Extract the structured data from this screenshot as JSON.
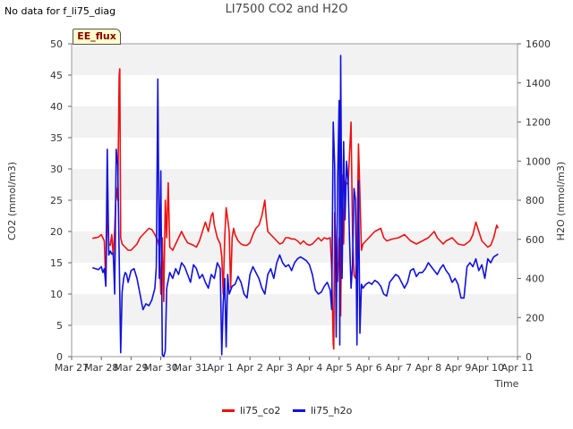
{
  "header": {
    "no_data_text": "No data for f_li75_diag",
    "title": "LI7500 CO2 and H2O",
    "badge": "EE_flux"
  },
  "legend": {
    "co2_label": "li75_co2",
    "h2o_label": "li75_h2o"
  },
  "colors": {
    "co2": "#ee1111",
    "h2o": "#1111dd",
    "band": "#f2f2f2"
  },
  "chart_data": {
    "type": "line",
    "title": "LI7500 CO2 and H2O",
    "xlabel": "Time",
    "ylabel_left": "CO2 (mmol/m3)",
    "ylabel_right": "H2O (mmol/m3)",
    "x_tick_labels": [
      "Mar 27",
      "Mar 28",
      "Mar 29",
      "Mar 30",
      "Mar 31",
      "Apr 1",
      "Apr 2",
      "Apr 3",
      "Apr 4",
      "Apr 5",
      "Apr 6",
      "Apr 7",
      "Apr 8",
      "Apr 9",
      "Apr 10",
      "Apr 11"
    ],
    "xlim_days": [
      0,
      15
    ],
    "ylim_left": [
      0,
      50
    ],
    "ylim_right": [
      0,
      1600
    ],
    "y_ticks_left": [
      0,
      5,
      10,
      15,
      20,
      25,
      30,
      35,
      40,
      45,
      50
    ],
    "y_ticks_right": [
      0,
      200,
      400,
      600,
      800,
      1000,
      1200,
      1400,
      1600
    ],
    "grid": "horizontal bands",
    "legend_position": "bottom-center",
    "series": [
      {
        "name": "li75_co2",
        "axis": "left",
        "points": [
          [
            0.7,
            18.9
          ],
          [
            0.9,
            19.1
          ],
          [
            1.0,
            19.5
          ],
          [
            1.1,
            18.5
          ],
          [
            1.15,
            11.5
          ],
          [
            1.2,
            25.0
          ],
          [
            1.25,
            18.0
          ],
          [
            1.3,
            17.8
          ],
          [
            1.35,
            19.5
          ],
          [
            1.4,
            16.0
          ],
          [
            1.45,
            20.5
          ],
          [
            1.5,
            27.0
          ],
          [
            1.55,
            25.0
          ],
          [
            1.6,
            45.0
          ],
          [
            1.62,
            46.0
          ],
          [
            1.65,
            19.0
          ],
          [
            1.7,
            18.0
          ],
          [
            1.8,
            17.5
          ],
          [
            1.9,
            17.0
          ],
          [
            2.0,
            17.0
          ],
          [
            2.1,
            17.5
          ],
          [
            2.2,
            18.0
          ],
          [
            2.3,
            19.0
          ],
          [
            2.4,
            19.5
          ],
          [
            2.5,
            20.0
          ],
          [
            2.6,
            20.5
          ],
          [
            2.7,
            20.3
          ],
          [
            2.8,
            19.5
          ],
          [
            2.9,
            18.5
          ],
          [
            2.95,
            17.5
          ],
          [
            3.0,
            10.0
          ],
          [
            3.05,
            19.0
          ],
          [
            3.1,
            8.8
          ],
          [
            3.15,
            25.0
          ],
          [
            3.2,
            19.0
          ],
          [
            3.25,
            27.8
          ],
          [
            3.3,
            17.5
          ],
          [
            3.4,
            17.0
          ],
          [
            3.5,
            18.0
          ],
          [
            3.6,
            19.0
          ],
          [
            3.7,
            20.0
          ],
          [
            3.8,
            19.0
          ],
          [
            3.9,
            18.2
          ],
          [
            4.0,
            18.0
          ],
          [
            4.1,
            17.8
          ],
          [
            4.2,
            17.5
          ],
          [
            4.3,
            18.5
          ],
          [
            4.4,
            20.0
          ],
          [
            4.5,
            21.5
          ],
          [
            4.6,
            20.0
          ],
          [
            4.7,
            22.5
          ],
          [
            4.75,
            23.0
          ],
          [
            4.8,
            21.0
          ],
          [
            4.9,
            19.0
          ],
          [
            5.0,
            18.0
          ],
          [
            5.05,
            16.0
          ],
          [
            5.1,
            10.0
          ],
          [
            5.15,
            19.0
          ],
          [
            5.2,
            23.8
          ],
          [
            5.25,
            22.0
          ],
          [
            5.3,
            20.0
          ],
          [
            5.35,
            11.0
          ],
          [
            5.4,
            19.0
          ],
          [
            5.45,
            20.5
          ],
          [
            5.5,
            19.5
          ],
          [
            5.6,
            18.5
          ],
          [
            5.7,
            18.0
          ],
          [
            5.8,
            17.8
          ],
          [
            5.9,
            17.8
          ],
          [
            6.0,
            18.2
          ],
          [
            6.1,
            19.5
          ],
          [
            6.2,
            20.5
          ],
          [
            6.3,
            21.0
          ],
          [
            6.4,
            22.5
          ],
          [
            6.5,
            25.0
          ],
          [
            6.55,
            22.0
          ],
          [
            6.6,
            20.0
          ],
          [
            6.7,
            19.5
          ],
          [
            6.8,
            19.0
          ],
          [
            6.9,
            18.5
          ],
          [
            7.0,
            18.0
          ],
          [
            7.1,
            18.2
          ],
          [
            7.2,
            19.0
          ],
          [
            7.3,
            19.0
          ],
          [
            7.4,
            18.8
          ],
          [
            7.5,
            18.8
          ],
          [
            7.6,
            18.5
          ],
          [
            7.7,
            18.0
          ],
          [
            7.8,
            18.5
          ],
          [
            7.9,
            18.0
          ],
          [
            8.0,
            17.8
          ],
          [
            8.1,
            18.0
          ],
          [
            8.2,
            18.5
          ],
          [
            8.3,
            19.0
          ],
          [
            8.4,
            18.5
          ],
          [
            8.5,
            19.0
          ],
          [
            8.6,
            18.8
          ],
          [
            8.7,
            19.0
          ],
          [
            8.75,
            14.0
          ],
          [
            8.8,
            2.0
          ],
          [
            8.82,
            1.2
          ],
          [
            8.85,
            23.0
          ],
          [
            8.9,
            16.0
          ],
          [
            8.95,
            12.0
          ],
          [
            9.0,
            19.0
          ],
          [
            9.05,
            6.5
          ],
          [
            9.1,
            29.0
          ],
          [
            9.15,
            18.0
          ],
          [
            9.2,
            28.0
          ],
          [
            9.3,
            27.5
          ],
          [
            9.4,
            37.5
          ],
          [
            9.45,
            20.0
          ],
          [
            9.5,
            13.0
          ],
          [
            9.55,
            12.5
          ],
          [
            9.6,
            18.0
          ],
          [
            9.65,
            34.0
          ],
          [
            9.7,
            26.0
          ],
          [
            9.75,
            17.0
          ],
          [
            9.8,
            18.0
          ],
          [
            9.9,
            18.5
          ],
          [
            10.0,
            19.0
          ],
          [
            10.2,
            20.0
          ],
          [
            10.4,
            20.5
          ],
          [
            10.5,
            19.0
          ],
          [
            10.6,
            18.5
          ],
          [
            10.8,
            18.8
          ],
          [
            11.0,
            19.0
          ],
          [
            11.2,
            19.5
          ],
          [
            11.4,
            18.5
          ],
          [
            11.6,
            18.0
          ],
          [
            11.8,
            18.5
          ],
          [
            12.0,
            19.0
          ],
          [
            12.2,
            20.0
          ],
          [
            12.3,
            19.0
          ],
          [
            12.5,
            18.0
          ],
          [
            12.6,
            18.5
          ],
          [
            12.8,
            19.0
          ],
          [
            13.0,
            18.0
          ],
          [
            13.2,
            17.8
          ],
          [
            13.4,
            18.5
          ],
          [
            13.5,
            19.5
          ],
          [
            13.6,
            21.5
          ],
          [
            13.7,
            20.0
          ],
          [
            13.8,
            18.5
          ],
          [
            14.0,
            17.5
          ],
          [
            14.1,
            17.8
          ],
          [
            14.2,
            19.0
          ],
          [
            14.3,
            21.0
          ],
          [
            14.35,
            20.5
          ]
        ]
      },
      {
        "name": "li75_h2o",
        "axis": "right",
        "points": [
          [
            0.7,
            455
          ],
          [
            0.8,
            450
          ],
          [
            0.9,
            445
          ],
          [
            1.0,
            460
          ],
          [
            1.05,
            430
          ],
          [
            1.1,
            450
          ],
          [
            1.15,
            360
          ],
          [
            1.2,
            1060
          ],
          [
            1.25,
            520
          ],
          [
            1.3,
            540
          ],
          [
            1.35,
            525
          ],
          [
            1.4,
            530
          ],
          [
            1.45,
            320
          ],
          [
            1.5,
            1060
          ],
          [
            1.55,
            980
          ],
          [
            1.6,
            520
          ],
          [
            1.65,
            20
          ],
          [
            1.7,
            330
          ],
          [
            1.75,
            400
          ],
          [
            1.8,
            430
          ],
          [
            1.85,
            420
          ],
          [
            1.9,
            380
          ],
          [
            2.0,
            440
          ],
          [
            2.1,
            450
          ],
          [
            2.2,
            400
          ],
          [
            2.3,
            320
          ],
          [
            2.4,
            240
          ],
          [
            2.5,
            270
          ],
          [
            2.6,
            260
          ],
          [
            2.7,
            290
          ],
          [
            2.8,
            350
          ],
          [
            2.85,
            460
          ],
          [
            2.9,
            1420
          ],
          [
            2.95,
            400
          ],
          [
            3.0,
            950
          ],
          [
            3.05,
            10
          ],
          [
            3.1,
            0
          ],
          [
            3.15,
            30
          ],
          [
            3.2,
            350
          ],
          [
            3.3,
            430
          ],
          [
            3.4,
            400
          ],
          [
            3.5,
            450
          ],
          [
            3.6,
            420
          ],
          [
            3.7,
            480
          ],
          [
            3.8,
            460
          ],
          [
            3.9,
            420
          ],
          [
            4.0,
            380
          ],
          [
            4.1,
            470
          ],
          [
            4.2,
            450
          ],
          [
            4.3,
            400
          ],
          [
            4.4,
            420
          ],
          [
            4.5,
            380
          ],
          [
            4.6,
            350
          ],
          [
            4.7,
            420
          ],
          [
            4.8,
            400
          ],
          [
            4.9,
            480
          ],
          [
            5.0,
            450
          ],
          [
            5.05,
            10
          ],
          [
            5.1,
            270
          ],
          [
            5.15,
            400
          ],
          [
            5.2,
            50
          ],
          [
            5.25,
            420
          ],
          [
            5.3,
            320
          ],
          [
            5.4,
            360
          ],
          [
            5.5,
            370
          ],
          [
            5.6,
            410
          ],
          [
            5.7,
            380
          ],
          [
            5.8,
            320
          ],
          [
            5.9,
            300
          ],
          [
            6.0,
            420
          ],
          [
            6.1,
            460
          ],
          [
            6.2,
            430
          ],
          [
            6.3,
            400
          ],
          [
            6.4,
            350
          ],
          [
            6.5,
            320
          ],
          [
            6.6,
            420
          ],
          [
            6.7,
            450
          ],
          [
            6.8,
            400
          ],
          [
            6.9,
            480
          ],
          [
            7.0,
            520
          ],
          [
            7.1,
            480
          ],
          [
            7.2,
            460
          ],
          [
            7.3,
            470
          ],
          [
            7.4,
            440
          ],
          [
            7.5,
            480
          ],
          [
            7.6,
            500
          ],
          [
            7.7,
            510
          ],
          [
            7.8,
            500
          ],
          [
            7.9,
            490
          ],
          [
            8.0,
            470
          ],
          [
            8.1,
            420
          ],
          [
            8.2,
            340
          ],
          [
            8.3,
            320
          ],
          [
            8.4,
            330
          ],
          [
            8.5,
            360
          ],
          [
            8.6,
            380
          ],
          [
            8.7,
            340
          ],
          [
            8.75,
            240
          ],
          [
            8.8,
            1200
          ],
          [
            8.85,
            980
          ],
          [
            8.9,
            100
          ],
          [
            8.95,
            900
          ],
          [
            9.0,
            1310
          ],
          [
            9.02,
            60
          ],
          [
            9.05,
            1540
          ],
          [
            9.1,
            400
          ],
          [
            9.15,
            1100
          ],
          [
            9.2,
            700
          ],
          [
            9.25,
            1000
          ],
          [
            9.3,
            900
          ],
          [
            9.35,
            600
          ],
          [
            9.4,
            350
          ],
          [
            9.45,
            470
          ],
          [
            9.5,
            860
          ],
          [
            9.55,
            800
          ],
          [
            9.6,
            60
          ],
          [
            9.65,
            900
          ],
          [
            9.7,
            120
          ],
          [
            9.75,
            370
          ],
          [
            9.8,
            350
          ],
          [
            9.9,
            370
          ],
          [
            10.0,
            380
          ],
          [
            10.1,
            370
          ],
          [
            10.2,
            390
          ],
          [
            10.3,
            380
          ],
          [
            10.4,
            360
          ],
          [
            10.5,
            320
          ],
          [
            10.6,
            310
          ],
          [
            10.7,
            380
          ],
          [
            10.8,
            400
          ],
          [
            10.9,
            420
          ],
          [
            11.0,
            410
          ],
          [
            11.1,
            380
          ],
          [
            11.2,
            350
          ],
          [
            11.3,
            380
          ],
          [
            11.4,
            440
          ],
          [
            11.5,
            450
          ],
          [
            11.6,
            410
          ],
          [
            11.7,
            430
          ],
          [
            11.8,
            430
          ],
          [
            11.9,
            450
          ],
          [
            12.0,
            480
          ],
          [
            12.1,
            460
          ],
          [
            12.2,
            440
          ],
          [
            12.3,
            420
          ],
          [
            12.4,
            450
          ],
          [
            12.5,
            470
          ],
          [
            12.6,
            440
          ],
          [
            12.7,
            420
          ],
          [
            12.8,
            380
          ],
          [
            12.9,
            400
          ],
          [
            13.0,
            370
          ],
          [
            13.1,
            300
          ],
          [
            13.2,
            300
          ],
          [
            13.3,
            460
          ],
          [
            13.4,
            480
          ],
          [
            13.5,
            460
          ],
          [
            13.6,
            500
          ],
          [
            13.7,
            440
          ],
          [
            13.8,
            470
          ],
          [
            13.9,
            400
          ],
          [
            14.0,
            500
          ],
          [
            14.1,
            480
          ],
          [
            14.2,
            510
          ],
          [
            14.3,
            520
          ],
          [
            14.35,
            525
          ]
        ]
      }
    ]
  }
}
